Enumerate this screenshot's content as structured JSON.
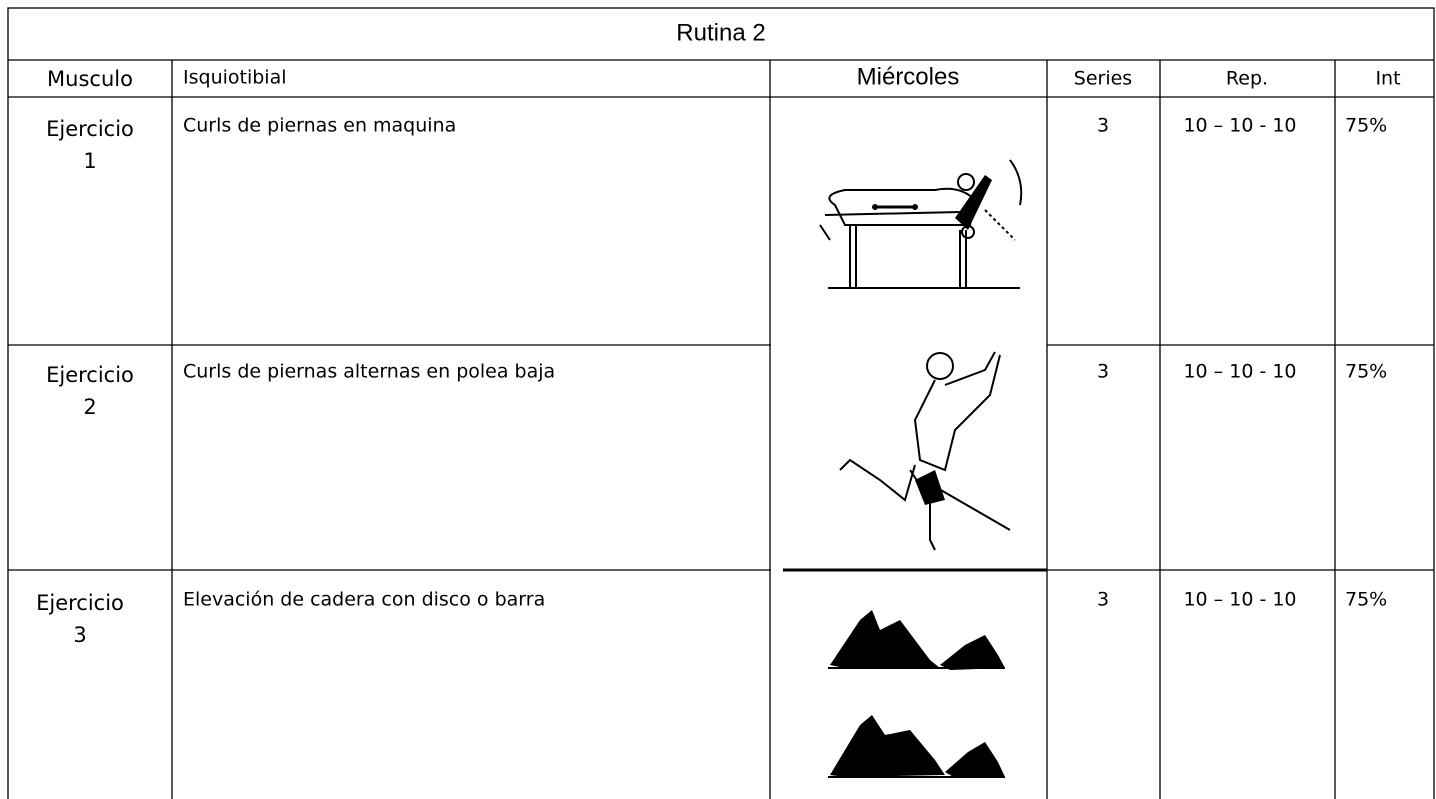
{
  "table": {
    "title": "Rutina  2",
    "header": [
      "Musculo",
      "Isquiotibial",
      "Miércoles",
      "Series",
      "Rep.",
      "Int"
    ],
    "rows": [
      {
        "label": "Ejercicio",
        "number": "1",
        "name": "Curls de piernas en maquina",
        "series": "3",
        "reps": "10 – 10 - 10",
        "intensity": "75%"
      },
      {
        "label": "Ejercicio",
        "number": "2",
        "name": "Curls de piernas alternas en polea baja",
        "series": "3",
        "reps": "10 – 10 - 10",
        "intensity": "75%"
      },
      {
        "label": "Ejercicio",
        "number": "3",
        "name": "Elevación de cadera con disco o barra",
        "series": "3",
        "reps": "10 – 10 - 10",
        "intensity": "75%"
      }
    ]
  }
}
